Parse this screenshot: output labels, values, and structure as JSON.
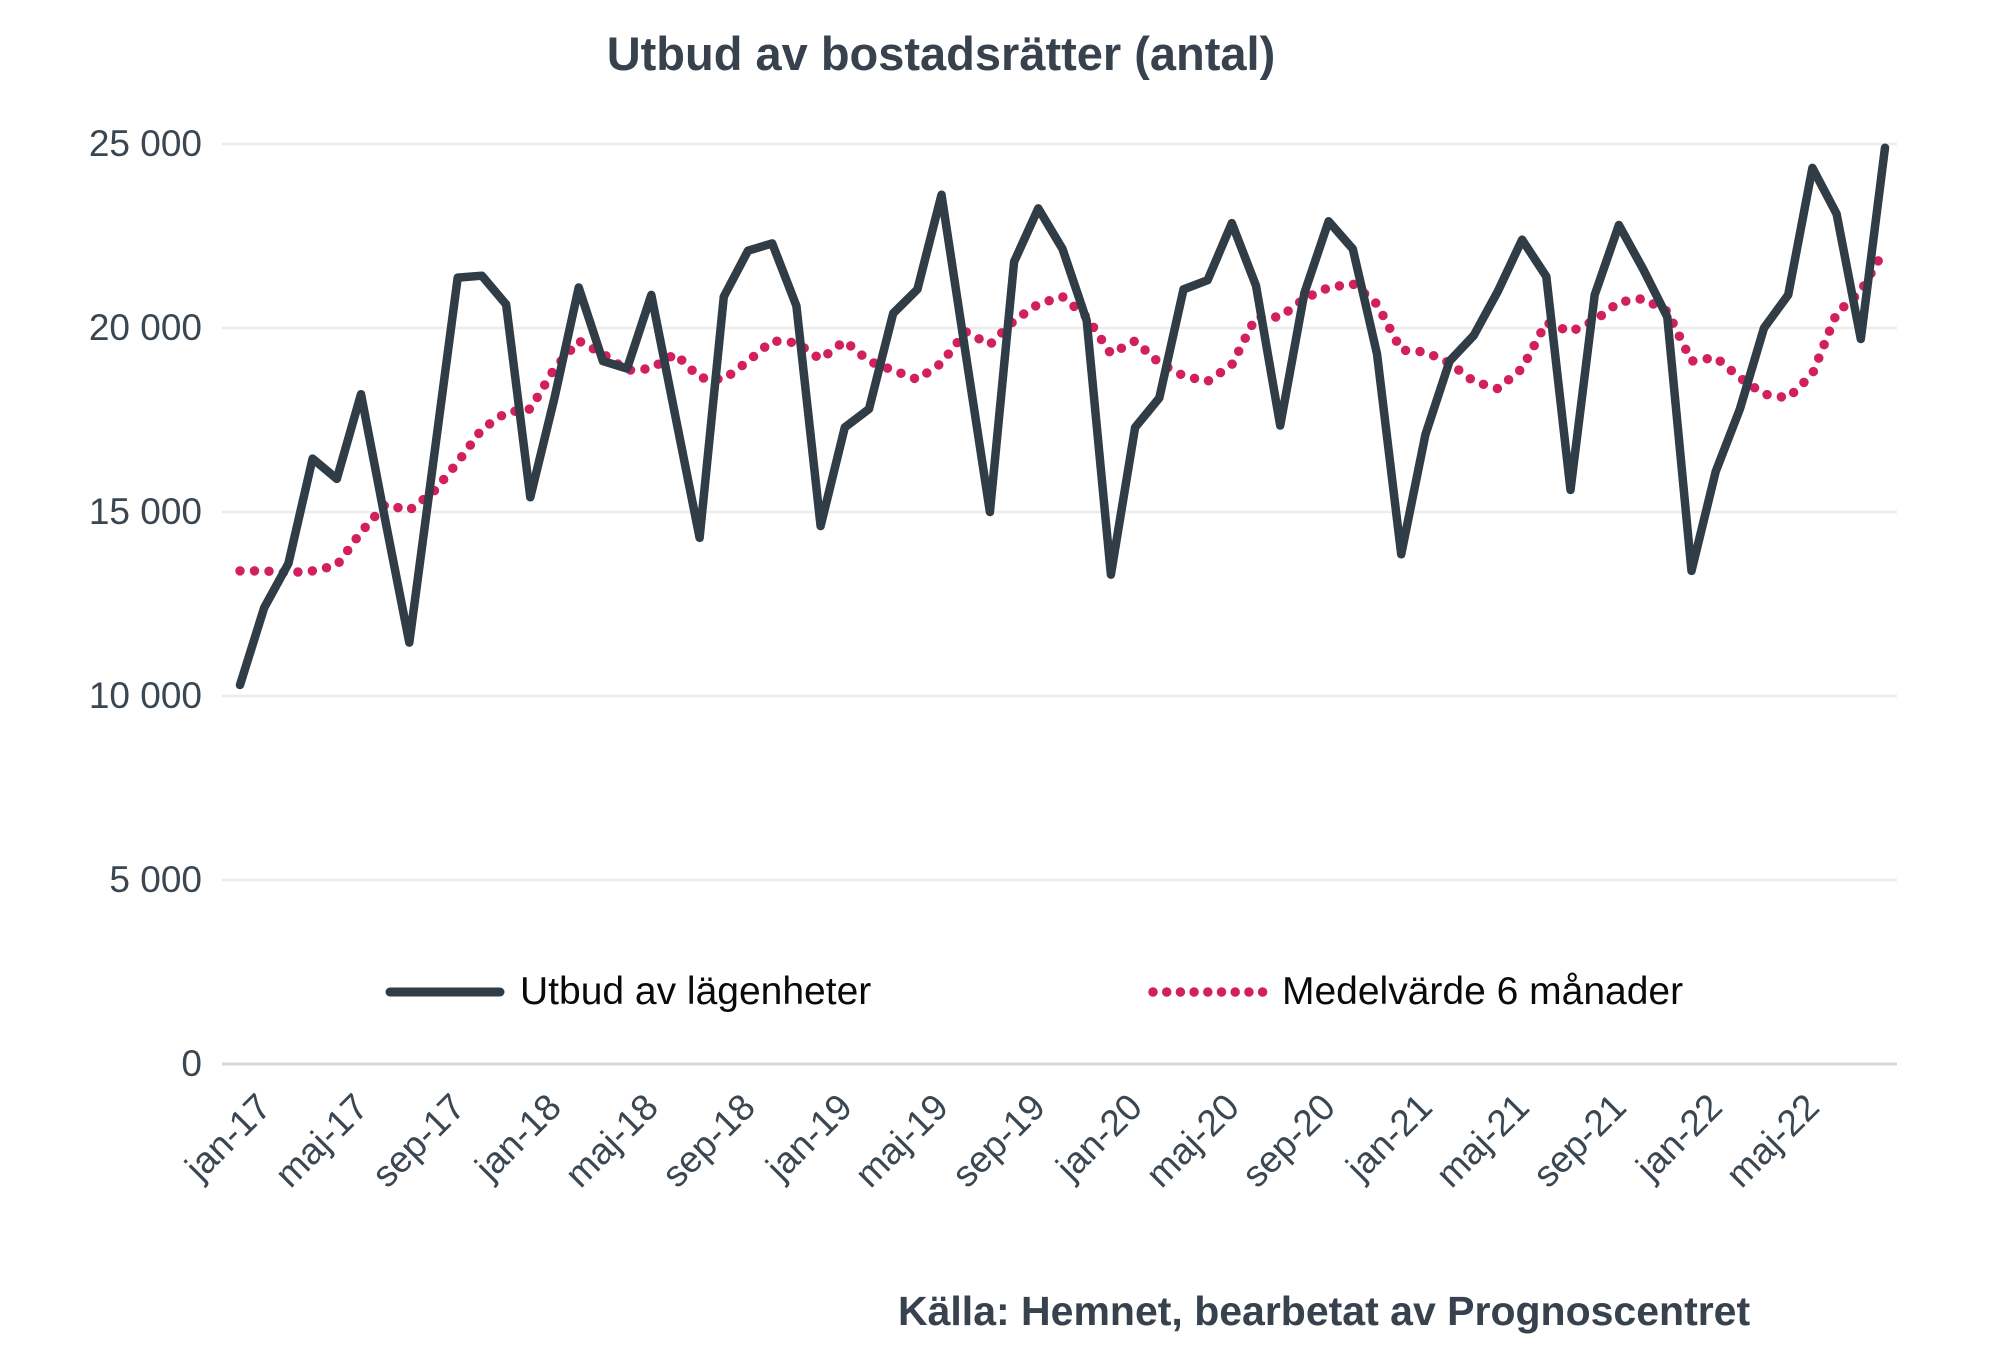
{
  "title": "Utbud av bostadsrätter (antal)",
  "source_note": "Källa: Hemnet, bearbetat av Prognoscentret",
  "legend": {
    "series_line_label": "Utbud av lägenheter",
    "series_avg_label": "Medelvärde 6 månader"
  },
  "colors": {
    "line_series": "#303c46",
    "avg_series": "#d2205f",
    "text": "#3a4752",
    "gridline": "#ececec",
    "gridline_zero": "#d8d8d8",
    "background": "#ffffff"
  },
  "chart_data": {
    "type": "line",
    "title": "Utbud av bostadsrätter (antal)",
    "xlabel": "",
    "ylabel": "",
    "ylim": [
      0,
      25000
    ],
    "grid": "horizontal",
    "legend_position": "bottom",
    "y_ticks": [
      {
        "value": 0,
        "label": "0"
      },
      {
        "value": 5000,
        "label": "5 000"
      },
      {
        "value": 10000,
        "label": "10 000"
      },
      {
        "value": 15000,
        "label": "15 000"
      },
      {
        "value": 20000,
        "label": "20 000"
      },
      {
        "value": 25000,
        "label": "25 000"
      }
    ],
    "x": [
      "jan-17",
      "feb-17",
      "mar-17",
      "apr-17",
      "maj-17",
      "jun-17",
      "jul-17",
      "aug-17",
      "sep-17",
      "okt-17",
      "nov-17",
      "dec-17",
      "jan-18",
      "feb-18",
      "mar-18",
      "apr-18",
      "maj-18",
      "jun-18",
      "jul-18",
      "aug-18",
      "sep-18",
      "okt-18",
      "nov-18",
      "dec-18",
      "jan-19",
      "feb-19",
      "mar-19",
      "apr-19",
      "maj-19",
      "jun-19",
      "jul-19",
      "aug-19",
      "sep-19",
      "okt-19",
      "nov-19",
      "dec-19",
      "jan-20",
      "feb-20",
      "mar-20",
      "apr-20",
      "maj-20",
      "jun-20",
      "jul-20",
      "aug-20",
      "sep-20",
      "okt-20",
      "nov-20",
      "dec-20",
      "jan-21",
      "feb-21",
      "mar-21",
      "apr-21",
      "maj-21",
      "jun-21",
      "jul-21",
      "aug-21",
      "sep-21",
      "okt-21",
      "nov-21",
      "dec-21",
      "jan-22",
      "feb-22",
      "mar-22",
      "apr-22",
      "maj-22",
      "jun-22",
      "jul-22",
      "aug-22",
      "sep-22"
    ],
    "x_tick_labels": [
      {
        "index": 0,
        "label": "jan-17"
      },
      {
        "index": 4,
        "label": "maj-17"
      },
      {
        "index": 8,
        "label": "sep-17"
      },
      {
        "index": 12,
        "label": "jan-18"
      },
      {
        "index": 16,
        "label": "maj-18"
      },
      {
        "index": 20,
        "label": "sep-18"
      },
      {
        "index": 24,
        "label": "jan-19"
      },
      {
        "index": 28,
        "label": "maj-19"
      },
      {
        "index": 32,
        "label": "sep-19"
      },
      {
        "index": 36,
        "label": "jan-20"
      },
      {
        "index": 40,
        "label": "maj-20"
      },
      {
        "index": 44,
        "label": "sep-20"
      },
      {
        "index": 48,
        "label": "jan-21"
      },
      {
        "index": 52,
        "label": "maj-21"
      },
      {
        "index": 56,
        "label": "sep-21"
      },
      {
        "index": 60,
        "label": "jan-22"
      },
      {
        "index": 64,
        "label": "maj-22"
      }
    ],
    "series": [
      {
        "name": "Utbud av lägenheter",
        "style": "solid",
        "values": [
          10300,
          12400,
          13600,
          16450,
          15900,
          18200,
          14800,
          11450,
          16400,
          21370,
          21420,
          20640,
          15400,
          18100,
          21100,
          19100,
          18900,
          20900,
          17600,
          14300,
          20850,
          22100,
          22300,
          20600,
          14620,
          17300,
          17800,
          20400,
          21050,
          23620,
          19300,
          15000,
          21800,
          23250,
          22150,
          20200,
          13300,
          17300,
          18100,
          21050,
          21300,
          22850,
          21150,
          17350,
          20950,
          22900,
          22150,
          19300,
          13850,
          17100,
          19100,
          19800,
          21000,
          22400,
          21400,
          15600,
          20900,
          22800,
          21600,
          20300,
          13400,
          16100,
          17800,
          20000,
          20900,
          24350,
          23100,
          19700,
          24900
        ]
      },
      {
        "name": "Medelvärde 6 månader",
        "style": "dotted",
        "values": [
          13400,
          13400,
          13350,
          13400,
          13550,
          14450,
          15200,
          15050,
          15550,
          16350,
          17250,
          17700,
          17800,
          18900,
          19650,
          19300,
          18850,
          18900,
          19300,
          18650,
          18600,
          19100,
          19650,
          19600,
          19150,
          19650,
          19100,
          18850,
          18600,
          19050,
          19900,
          19550,
          20200,
          20650,
          20850,
          20300,
          19300,
          19650,
          19050,
          18700,
          18550,
          19000,
          20300,
          20300,
          20800,
          21100,
          21200,
          20650,
          19400,
          19350,
          19050,
          18550,
          18350,
          18900,
          20150,
          19900,
          20200,
          20700,
          20800,
          20450,
          19100,
          19200,
          18650,
          18200,
          18100,
          18750,
          20400,
          21000,
          22150
        ]
      }
    ]
  }
}
